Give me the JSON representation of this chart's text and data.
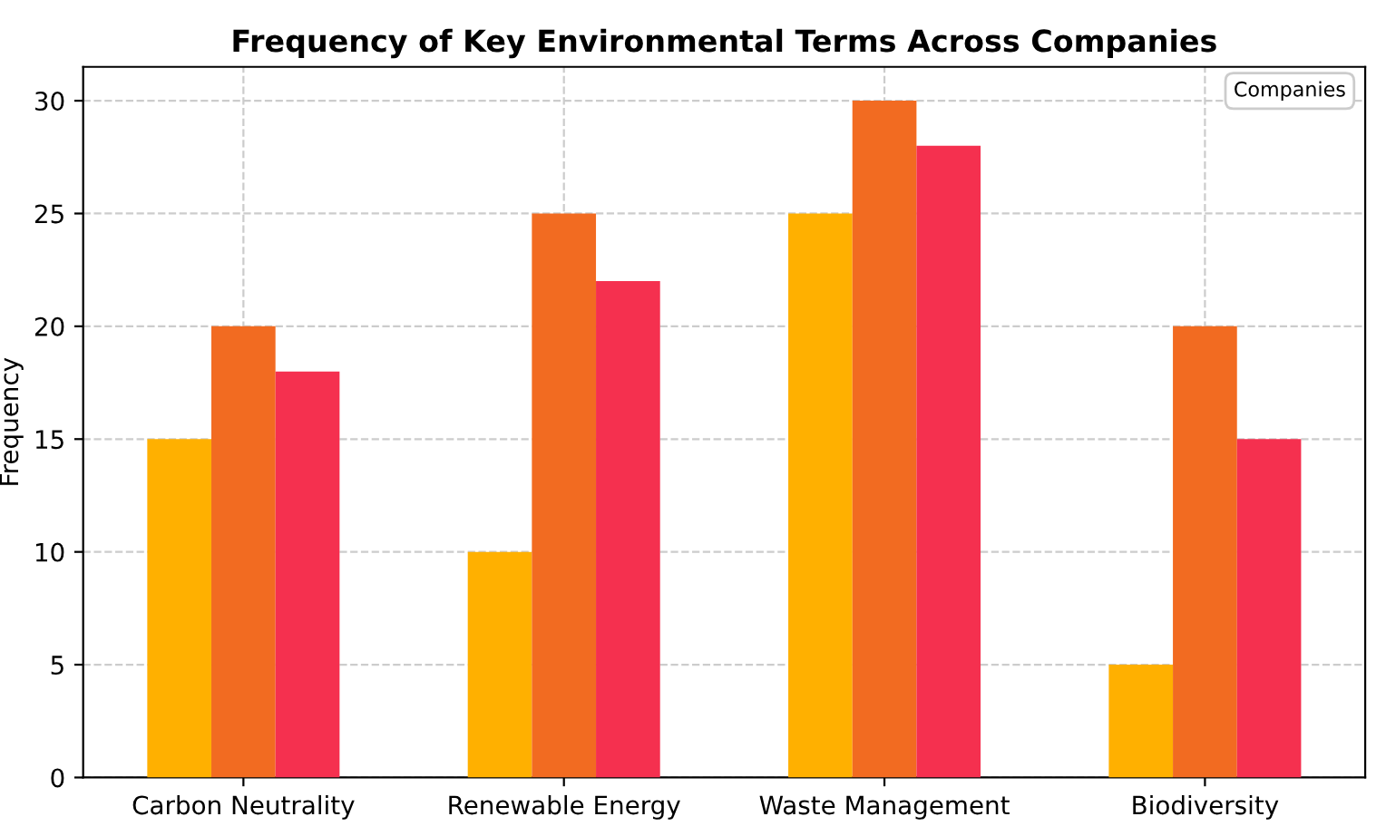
{
  "chart_data": {
    "type": "bar",
    "title": "Frequency of Key Environmental Terms Across Companies",
    "ylabel": "Frequency",
    "legend_title": "Companies",
    "categories": [
      "Carbon Neutrality",
      "Renewable Energy",
      "Waste Management",
      "Biodiversity"
    ],
    "series": [
      {
        "color": "#ffb000",
        "values": [
          15,
          10,
          25,
          5
        ]
      },
      {
        "color": "#f26b21",
        "values": [
          20,
          25,
          30,
          20
        ]
      },
      {
        "color": "#f5304f",
        "values": [
          18,
          22,
          28,
          15
        ]
      }
    ],
    "ylim": [
      0,
      31.5
    ],
    "yticks": [
      0,
      5,
      10,
      15,
      20,
      25,
      30
    ],
    "grid": true
  }
}
